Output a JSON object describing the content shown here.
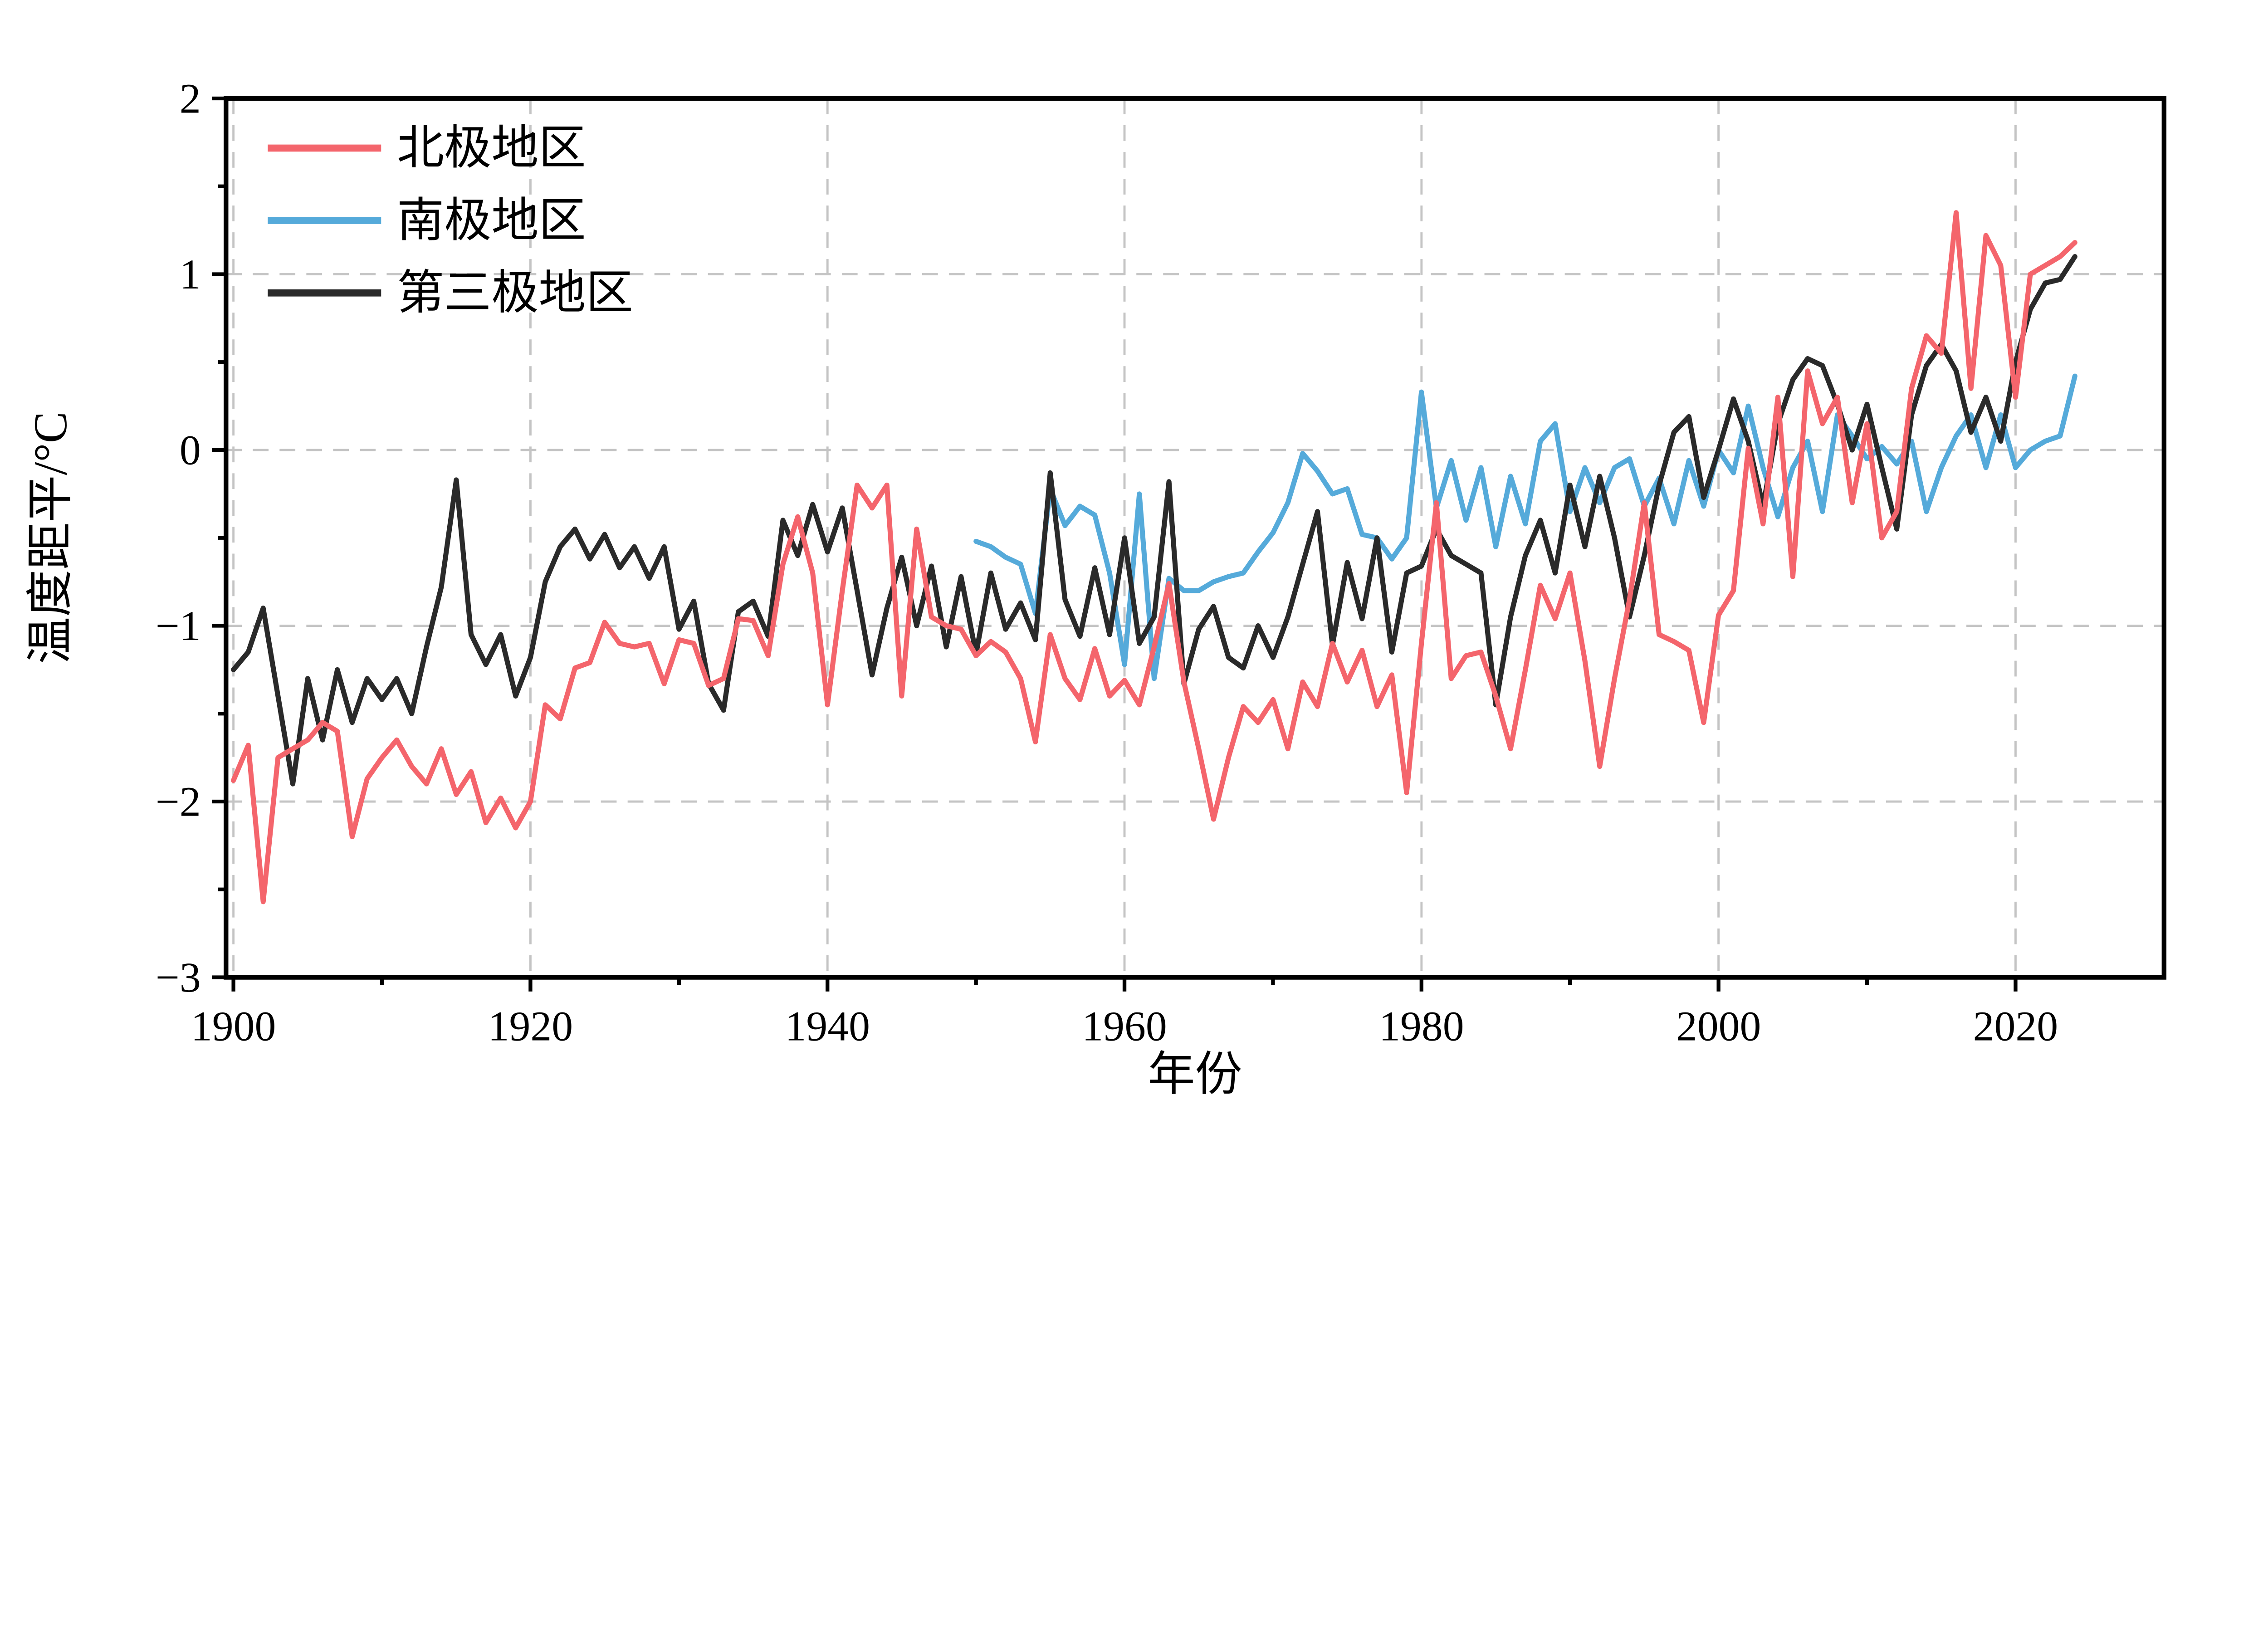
{
  "figure": {
    "background": "#ffffff"
  },
  "chart_data": {
    "type": "line",
    "title": "",
    "xlabel": "年份",
    "ylabel": "温度距平/°C",
    "xlim": [
      1899.5,
      2030
    ],
    "ylim": [
      -3,
      2
    ],
    "xticks": [
      1900,
      1920,
      1940,
      1960,
      1980,
      2000,
      2020
    ],
    "x_minor_step": 10,
    "yticks": [
      -3,
      -2,
      -1,
      0,
      1,
      2
    ],
    "ytick_labels": [
      "−3",
      "−2",
      "−1",
      "0",
      "1",
      "2"
    ],
    "y_minor_step": 0.5,
    "grid": "dashed-major",
    "grid_color": "#c4c4c4",
    "legend_position": "top-left",
    "series": [
      {
        "name": "北极地区",
        "color": "#f4656c",
        "start_year": 1900,
        "values": [
          -1.88,
          -1.68,
          -2.57,
          -1.75,
          -1.7,
          -1.65,
          -1.55,
          -1.6,
          -2.2,
          -1.87,
          -1.75,
          -1.65,
          -1.8,
          -1.9,
          -1.7,
          -1.96,
          -1.83,
          -2.12,
          -1.98,
          -2.15,
          -2.0,
          -1.45,
          -1.53,
          -1.24,
          -1.21,
          -0.98,
          -1.1,
          -1.12,
          -1.1,
          -1.33,
          -1.08,
          -1.1,
          -1.34,
          -1.3,
          -0.96,
          -0.97,
          -1.17,
          -0.65,
          -0.38,
          -0.7,
          -1.45,
          -0.8,
          -0.2,
          -0.33,
          -0.2,
          -1.4,
          -0.45,
          -0.95,
          -1.0,
          -1.02,
          -1.17,
          -1.09,
          -1.15,
          -1.3,
          -1.66,
          -1.05,
          -1.3,
          -1.42,
          -1.13,
          -1.4,
          -1.31,
          -1.45,
          -1.12,
          -0.76,
          -1.32,
          -1.7,
          -2.1,
          -1.75,
          -1.46,
          -1.55,
          -1.42,
          -1.7,
          -1.32,
          -1.46,
          -1.1,
          -1.32,
          -1.14,
          -1.46,
          -1.28,
          -1.95,
          -1.1,
          -0.3,
          -1.3,
          -1.17,
          -1.15,
          -1.4,
          -1.7,
          -1.25,
          -0.77,
          -0.96,
          -0.7,
          -1.2,
          -1.8,
          -1.3,
          -0.85,
          -0.3,
          -1.05,
          -1.09,
          -1.14,
          -1.55,
          -0.94,
          -0.8,
          0.01,
          -0.42,
          0.3,
          -0.72,
          0.45,
          0.15,
          0.3,
          -0.3,
          0.15,
          -0.5,
          -0.35,
          0.35,
          0.65,
          0.55,
          1.35,
          0.35,
          1.22,
          1.05,
          0.3,
          1.0,
          1.05,
          1.1,
          1.18
        ]
      },
      {
        "name": "南极地区",
        "color": "#55aada",
        "start_year": 1950,
        "values": [
          -0.52,
          -0.55,
          -0.61,
          -0.65,
          -0.93,
          -0.22,
          -0.43,
          -0.32,
          -0.37,
          -0.7,
          -1.22,
          -0.25,
          -1.3,
          -0.73,
          -0.8,
          -0.8,
          -0.75,
          -0.72,
          -0.7,
          -0.58,
          -0.47,
          -0.3,
          -0.02,
          -0.12,
          -0.25,
          -0.22,
          -0.48,
          -0.5,
          -0.62,
          -0.5,
          0.33,
          -0.33,
          -0.06,
          -0.4,
          -0.1,
          -0.55,
          -0.15,
          -0.42,
          0.05,
          0.15,
          -0.35,
          -0.1,
          -0.3,
          -0.1,
          -0.05,
          -0.32,
          -0.16,
          -0.42,
          -0.06,
          -0.32,
          0.0,
          -0.13,
          0.25,
          -0.1,
          -0.38,
          -0.1,
          0.05,
          -0.35,
          0.2,
          0.08,
          -0.05,
          0.02,
          -0.08,
          0.05,
          -0.35,
          -0.1,
          0.08,
          0.2,
          -0.1,
          0.2,
          -0.1,
          0.0,
          0.05,
          0.08,
          0.42
        ]
      },
      {
        "name": "第三极地区",
        "color": "#2a2a2a",
        "start_year": 1900,
        "values": [
          -1.25,
          -1.15,
          -0.9,
          -1.4,
          -1.9,
          -1.3,
          -1.65,
          -1.25,
          -1.55,
          -1.3,
          -1.42,
          -1.3,
          -1.5,
          -1.12,
          -0.78,
          -0.17,
          -1.05,
          -1.22,
          -1.05,
          -1.4,
          -1.18,
          -0.75,
          -0.55,
          -0.45,
          -0.62,
          -0.48,
          -0.67,
          -0.55,
          -0.73,
          -0.55,
          -1.02,
          -0.86,
          -1.33,
          -1.48,
          -0.92,
          -0.86,
          -1.06,
          -0.4,
          -0.6,
          -0.31,
          -0.58,
          -0.33,
          -0.8,
          -1.28,
          -0.9,
          -0.61,
          -1.0,
          -0.66,
          -1.12,
          -0.72,
          -1.16,
          -0.7,
          -1.02,
          -0.87,
          -1.08,
          -0.13,
          -0.85,
          -1.06,
          -0.67,
          -1.05,
          -0.5,
          -1.1,
          -0.95,
          -0.18,
          -1.33,
          -1.02,
          -0.89,
          -1.18,
          -1.24,
          -1.0,
          -1.18,
          -0.95,
          -0.65,
          -0.35,
          -1.11,
          -0.64,
          -0.96,
          -0.5,
          -1.15,
          -0.7,
          -0.66,
          -0.45,
          -0.6,
          -0.65,
          -0.7,
          -1.45,
          -0.95,
          -0.6,
          -0.4,
          -0.7,
          -0.2,
          -0.55,
          -0.15,
          -0.5,
          -0.95,
          -0.6,
          -0.2,
          0.1,
          0.19,
          -0.27,
          0.0,
          0.29,
          0.05,
          -0.32,
          0.15,
          0.4,
          0.52,
          0.48,
          0.26,
          0.0,
          0.26,
          -0.1,
          -0.45,
          0.2,
          0.48,
          0.6,
          0.45,
          0.1,
          0.3,
          0.05,
          0.5,
          0.8,
          0.95,
          0.97,
          1.1
        ]
      }
    ]
  }
}
